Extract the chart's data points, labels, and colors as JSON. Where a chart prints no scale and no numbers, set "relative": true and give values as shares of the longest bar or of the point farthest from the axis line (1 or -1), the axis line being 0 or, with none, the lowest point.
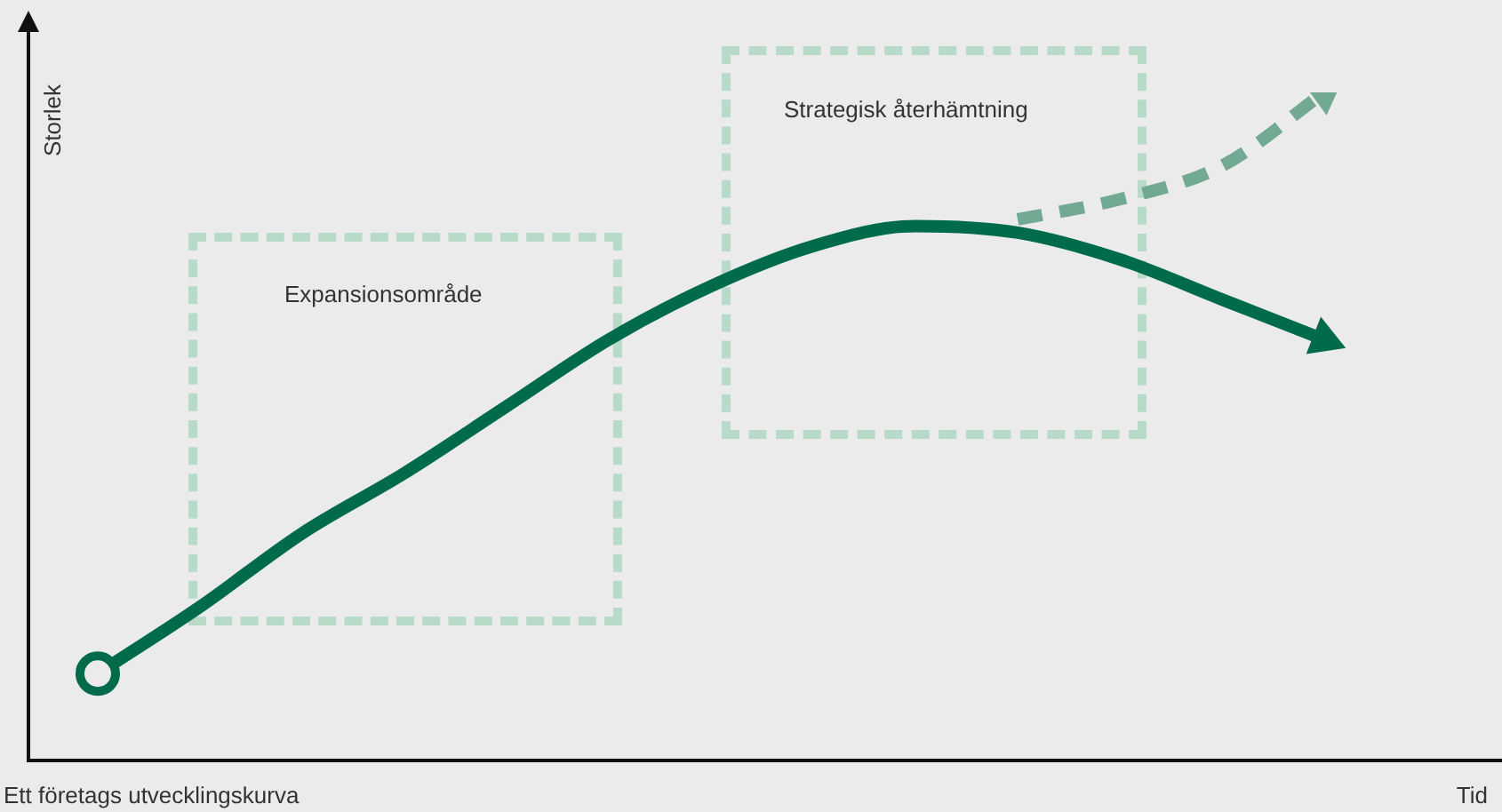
{
  "chart_data": {
    "type": "line",
    "relative": true,
    "xlabel": "Tid",
    "ylabel": "Storlek",
    "categories": [
      null,
      null,
      null,
      null,
      null,
      null,
      null,
      null,
      null,
      null,
      null,
      null,
      null
    ],
    "series": [
      {
        "color": "#006b4a",
        "line_style": "solid",
        "values": [
          0.13,
          0.23,
          0.34,
          0.43,
          0.53,
          0.63,
          0.71,
          0.77,
          0.8,
          0.79,
          0.75,
          0.69,
          0.63
        ]
      },
      {
        "color": "#72a993",
        "line_style": "dashed",
        "values": [
          null,
          null,
          null,
          null,
          null,
          null,
          null,
          null,
          null,
          0.81,
          0.84,
          0.89,
          1
        ]
      }
    ],
    "annotations": [
      "Expansionsområde",
      "Strategisk återhämtning",
      "Ett företags utvecklingskurva"
    ]
  }
}
